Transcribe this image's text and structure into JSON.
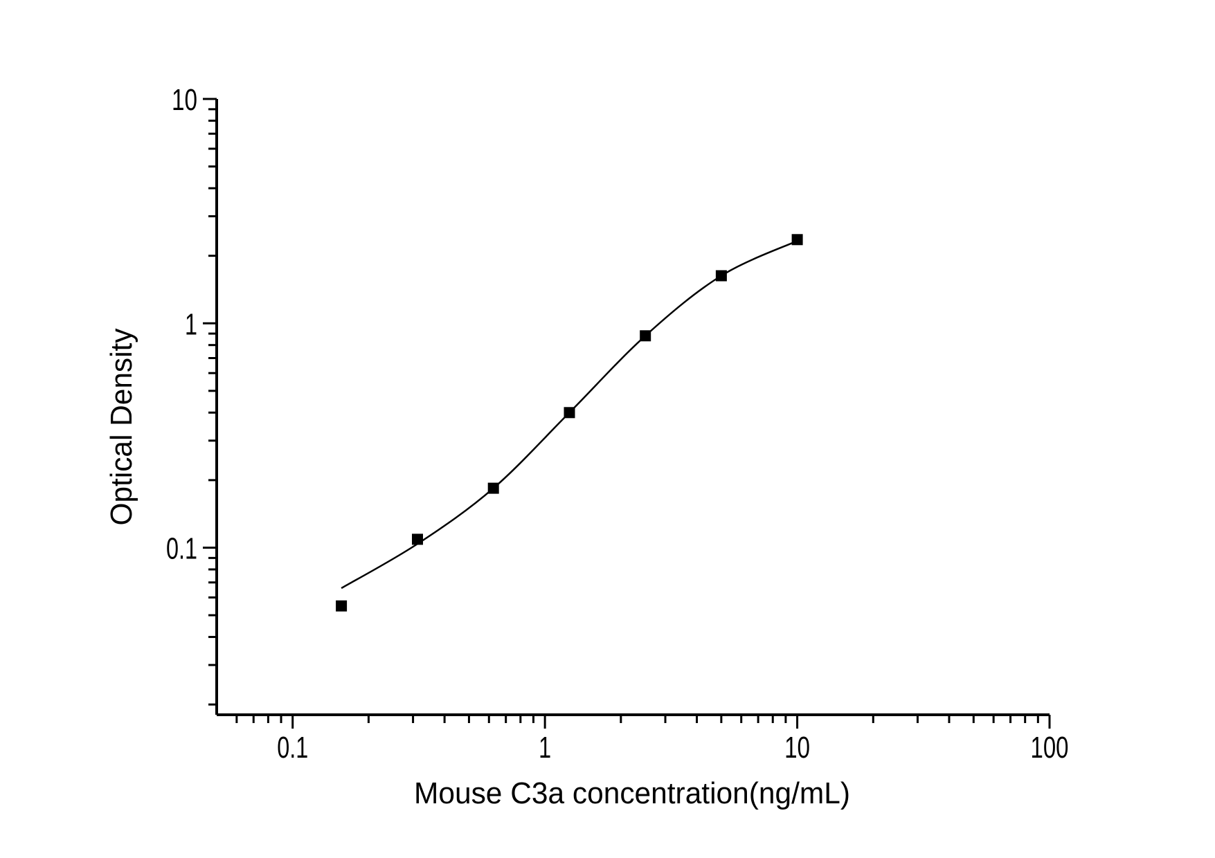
{
  "figure": {
    "background_color": "#ffffff",
    "ink_color": "#000000"
  },
  "chart_data": {
    "type": "scatter",
    "title": "",
    "xlabel": "Mouse C3a concentration(ng/mL)",
    "ylabel": "Optical Density",
    "x_scale": "log",
    "y_scale": "log",
    "xlim": [
      0.05,
      100
    ],
    "ylim": [
      0.018,
      10
    ],
    "x_major_ticks": [
      0.1,
      1,
      10,
      100
    ],
    "x_tick_labels": [
      "0.1",
      "1",
      "10",
      "100"
    ],
    "y_major_ticks": [
      10,
      1,
      0.1
    ],
    "y_tick_labels": [
      "10",
      "1",
      "0.1"
    ],
    "grid": false,
    "legend": null,
    "series": [
      {
        "name": "standard-points",
        "marker": "filled-square",
        "color": "#000000",
        "x": [
          0.156,
          0.3125,
          0.625,
          1.25,
          2.5,
          5,
          10
        ],
        "y": [
          0.055,
          0.109,
          0.184,
          0.4,
          0.88,
          1.63,
          2.36
        ]
      }
    ],
    "fit_curve": {
      "name": "standard-curve-fit",
      "color": "#000000",
      "x": [
        0.156,
        0.3125,
        0.625,
        1.25,
        2.5,
        5,
        10
      ],
      "y": [
        0.066,
        0.104,
        0.184,
        0.4,
        0.88,
        1.63,
        2.33
      ]
    }
  }
}
